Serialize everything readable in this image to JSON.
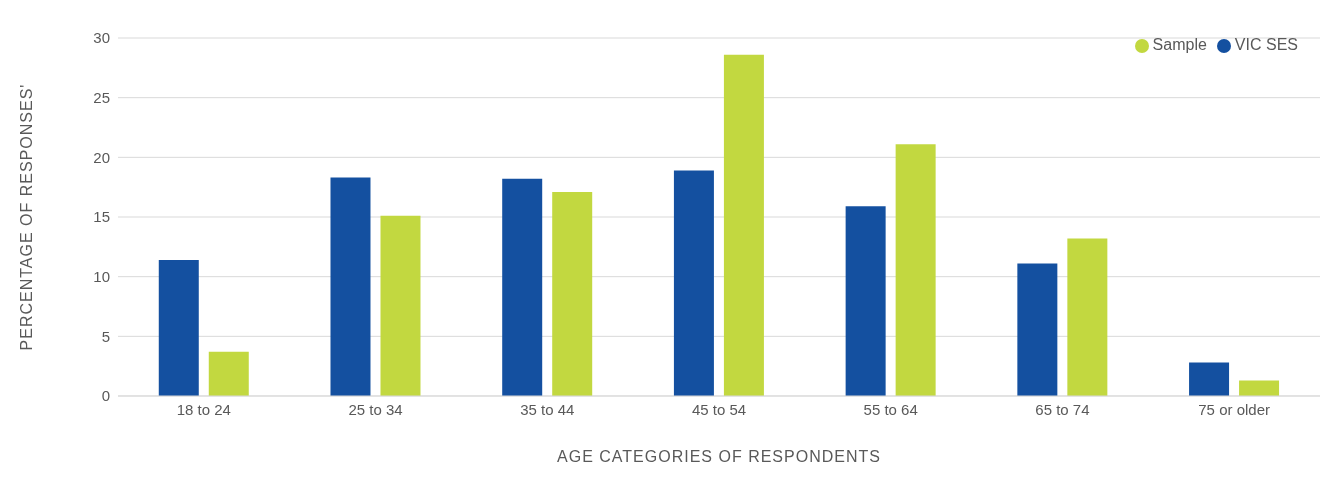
{
  "chart_data": {
    "type": "bar",
    "xlabel": "AGE CATEGORIES OF RESPONDENTS",
    "ylabel": "PERCENTAGE OF RESPONSES'",
    "categories": [
      "18 to 24",
      "25 to 34",
      "35 to 44",
      "45 to 54",
      "55 to 64",
      "65 to 74",
      "75 or older"
    ],
    "series": [
      {
        "name": "VIC SES",
        "color": "#1450a0",
        "values": [
          11.4,
          18.3,
          18.2,
          18.9,
          15.9,
          11.1,
          2.8
        ]
      },
      {
        "name": "Sample",
        "color": "#c2d840",
        "values": [
          3.7,
          15.1,
          17.1,
          28.6,
          21.1,
          13.2,
          1.3
        ]
      }
    ],
    "ylim": [
      0,
      30
    ],
    "yticks": [
      0,
      5,
      10,
      15,
      20,
      25,
      30
    ],
    "grid": "y",
    "legend": "top right"
  }
}
